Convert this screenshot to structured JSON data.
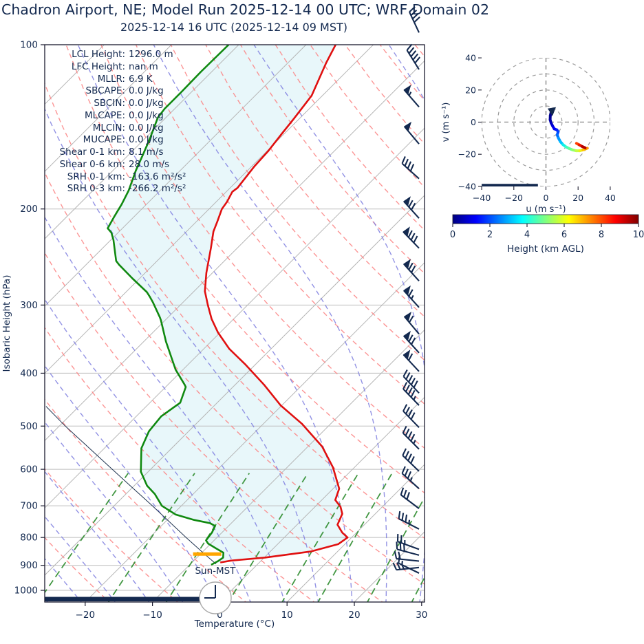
{
  "title": "Chadron Airport, NE; Model Run 2025-12-14 00 UTC; WRF Domain 02",
  "subtitle": "2025-12-14 16 UTC  (2025-12-14 09 MST)",
  "colors": {
    "navy": "#13294f",
    "temp": "#e01010",
    "dewpoint": "#108910",
    "shade": "#e0f4f8",
    "isotherm": "#b5b5b5",
    "isobar": "#bdbdbd",
    "dry_adiabat": "#fb8383",
    "moist_adiabat": "#7f7fdf",
    "mixing_ratio": "#2d8c2d",
    "lcl_marker": "#ffa500",
    "parcel": "#1f3350",
    "ring": "#9a9a9a",
    "clock_ring": "#a8a8a8"
  },
  "indices": [
    {
      "label": "LCL Height:",
      "value": "1296.0 m"
    },
    {
      "label": "LFC Height:",
      "value": "nan m"
    },
    {
      "label": "MLLR:",
      "value": "6.9 K"
    },
    {
      "label": "SBCAPE:",
      "value": "0.0 J/kg"
    },
    {
      "label": "SBCIN:",
      "value": "0.0 J/kg"
    },
    {
      "label": "MLCAPE:",
      "value": "0.0 J/kg"
    },
    {
      "label": "MLCIN:",
      "value": "0.0 J/kg"
    },
    {
      "label": "MUCAPE:",
      "value": "0.0 J/kg"
    },
    {
      "label": "Shear 0-1 km:",
      "value": "8.1 m/s"
    },
    {
      "label": "Shear 0-6 km:",
      "value": "28.0 m/s"
    },
    {
      "label": "SRH 0-1 km:",
      "value": "-163.6 m²/s²"
    },
    {
      "label": "SRH 0-3 km:",
      "value": "-266.2 m²/s²"
    }
  ],
  "chart_data": {
    "type": "skewt-logp-sounding",
    "station": "Chadron Airport, NE",
    "model_run": "2025-12-14 00 UTC",
    "valid_time": "2025-12-14 16 UTC (2025-12-14 09 MST)",
    "axes": {
      "xlabel": "Temperature (°C)",
      "ylabel": "Isobaric Height (hPa)",
      "x_ticks": [
        -20,
        -10,
        0,
        10,
        20,
        30
      ],
      "x_tick_labels": [
        "−20",
        "−10",
        "0",
        "10",
        "20",
        "30"
      ],
      "y_ticks": [
        100,
        200,
        300,
        400,
        500,
        600,
        700,
        800,
        900,
        1000
      ],
      "p_top": 100,
      "p_bottom": 1050,
      "t_at_x0": -26.0,
      "t_at_x1": 30.4
    },
    "background": {
      "isotherms": {
        "start": -120,
        "end": 40,
        "step": 10
      },
      "dry_adiabats": {
        "start": -30,
        "end": 230,
        "step": 10
      },
      "moist_adiabats": {
        "start": -40,
        "end": 45,
        "step": 5
      },
      "mixing_ratios": [
        0.0004,
        0.001,
        0.002,
        0.004,
        0.007,
        0.01,
        0.016,
        0.024,
        0.032
      ],
      "mixing_top_hpa": 600
    },
    "temperature_profile": [
      [
        100,
        -65.6
      ],
      [
        108,
        -64.3
      ],
      [
        124,
        -61.6
      ],
      [
        137,
        -60.8
      ],
      [
        145,
        -60.4
      ],
      [
        157,
        -59.8
      ],
      [
        167,
        -59.6
      ],
      [
        183,
        -58.9
      ],
      [
        186,
        -59.1
      ],
      [
        194,
        -58.4
      ],
      [
        200,
        -58.1
      ],
      [
        211,
        -56.9
      ],
      [
        220,
        -56.0
      ],
      [
        236,
        -53.9
      ],
      [
        262,
        -50.9
      ],
      [
        283,
        -48.4
      ],
      [
        300,
        -45.9
      ],
      [
        318,
        -43.3
      ],
      [
        337,
        -40.3
      ],
      [
        361,
        -36.2
      ],
      [
        386,
        -31.4
      ],
      [
        420,
        -25.7
      ],
      [
        458,
        -20.2
      ],
      [
        495,
        -14.3
      ],
      [
        545,
        -7.9
      ],
      [
        595,
        -3.2
      ],
      [
        651,
        0.9
      ],
      [
        683,
        2.0
      ],
      [
        703,
        3.8
      ],
      [
        724,
        5.1
      ],
      [
        758,
        6.0
      ],
      [
        784,
        7.9
      ],
      [
        800,
        9.4
      ],
      [
        823,
        9.0
      ],
      [
        849,
        6.0
      ],
      [
        871,
        0.1
      ],
      [
        882,
        -4.5
      ],
      [
        889,
        -5.8
      ]
    ],
    "dewpoint_profile": [
      [
        100,
        -81.5
      ],
      [
        112,
        -81.6
      ],
      [
        122,
        -81.5
      ],
      [
        131,
        -81.5
      ],
      [
        136,
        -81.2
      ],
      [
        149,
        -79.2
      ],
      [
        159,
        -77.9
      ],
      [
        170,
        -76.6
      ],
      [
        185,
        -74.7
      ],
      [
        196,
        -73.7
      ],
      [
        206,
        -73.0
      ],
      [
        217,
        -72.2
      ],
      [
        221,
        -71.0
      ],
      [
        228,
        -69.6
      ],
      [
        249,
        -66.1
      ],
      [
        253,
        -65.1
      ],
      [
        268,
        -61.1
      ],
      [
        284,
        -56.9
      ],
      [
        290,
        -55.7
      ],
      [
        297,
        -54.4
      ],
      [
        316,
        -51.2
      ],
      [
        320,
        -50.6
      ],
      [
        350,
        -46.7
      ],
      [
        394,
        -41.1
      ],
      [
        420,
        -37.5
      ],
      [
        424,
        -37.0
      ],
      [
        453,
        -35.5
      ],
      [
        480,
        -36.3
      ],
      [
        511,
        -35.9
      ],
      [
        549,
        -34.5
      ],
      [
        606,
        -31.1
      ],
      [
        643,
        -28.1
      ],
      [
        666,
        -25.7
      ],
      [
        700,
        -22.9
      ],
      [
        726,
        -19.6
      ],
      [
        743,
        -16.0
      ],
      [
        753,
        -13.2
      ],
      [
        762,
        -12.0
      ],
      [
        783,
        -11.5
      ],
      [
        810,
        -11.2
      ],
      [
        821,
        -10.4
      ],
      [
        838,
        -8.5
      ],
      [
        853,
        -6.8
      ],
      [
        871,
        -6.1
      ],
      [
        883,
        -6.3
      ],
      [
        898,
        -6.8
      ]
    ],
    "parcel_profile": [
      [
        895,
        -6.2
      ],
      [
        850,
        -10.1
      ],
      [
        800,
        -14.6
      ],
      [
        750,
        -19.3
      ],
      [
        700,
        -24.3
      ],
      [
        650,
        -29.8
      ],
      [
        600,
        -35.7
      ],
      [
        550,
        -42.1
      ],
      [
        500,
        -49.1
      ],
      [
        460,
        -54.9
      ]
    ],
    "lcl_marker": {
      "pressure": 858,
      "t_from": -11.1,
      "t_to": -6.9
    },
    "surface_bar": {
      "t_from": -26.0,
      "t_to": -3.0
    },
    "sun_label": "Sun-MST",
    "clock": {
      "hour_hand": "9",
      "minute_hand": "12"
    },
    "wind_barbs": [
      {
        "p": 95,
        "rot": 245,
        "flags": 0,
        "full": 4,
        "half": 0
      },
      {
        "p": 111,
        "rot": 238,
        "flags": 0,
        "full": 5,
        "half": 0
      },
      {
        "p": 130,
        "rot": 229,
        "flags": 1,
        "full": 0,
        "half": 1
      },
      {
        "p": 152,
        "rot": 230,
        "flags": 1,
        "full": 0,
        "half": 0
      },
      {
        "p": 176,
        "rot": 222,
        "flags": 0,
        "full": 4,
        "half": 0
      },
      {
        "p": 208,
        "rot": 228,
        "flags": 1,
        "full": 2,
        "half": 0
      },
      {
        "p": 236,
        "rot": 226,
        "flags": 1,
        "full": 3,
        "half": 0
      },
      {
        "p": 271,
        "rot": 228,
        "flags": 1,
        "full": 2,
        "half": 0
      },
      {
        "p": 303,
        "rot": 228,
        "flags": 1,
        "full": 1,
        "half": 1
      },
      {
        "p": 339,
        "rot": 230,
        "flags": 1,
        "full": 1,
        "half": 0
      },
      {
        "p": 367,
        "rot": 228,
        "flags": 1,
        "full": 2,
        "half": 0
      },
      {
        "p": 397,
        "rot": 227,
        "flags": 1,
        "full": 1,
        "half": 0
      },
      {
        "p": 435,
        "rot": 227,
        "flags": 0,
        "full": 5,
        "half": 0
      },
      {
        "p": 458,
        "rot": 226,
        "flags": 0,
        "full": 4,
        "half": 1
      },
      {
        "p": 503,
        "rot": 226,
        "flags": 0,
        "full": 4,
        "half": 0
      },
      {
        "p": 551,
        "rot": 225,
        "flags": 0,
        "full": 4,
        "half": 1
      },
      {
        "p": 605,
        "rot": 224,
        "flags": 0,
        "full": 4,
        "half": 0
      },
      {
        "p": 651,
        "rot": 222,
        "flags": 0,
        "full": 3,
        "half": 1
      },
      {
        "p": 708,
        "rot": 217,
        "flags": 0,
        "full": 3,
        "half": 0
      },
      {
        "p": 772,
        "rot": 207,
        "flags": 0,
        "full": 3,
        "half": 1
      },
      {
        "p": 841,
        "rot": 200,
        "flags": 0,
        "full": 2,
        "half": 1
      },
      {
        "p": 862,
        "rot": 195,
        "flags": 0,
        "full": 3,
        "half": 0
      },
      {
        "p": 884,
        "rot": 186,
        "flags": 0,
        "full": 2,
        "half": 0
      },
      {
        "p": 908,
        "rot": 174,
        "flags": 0,
        "full": 2,
        "half": 1
      },
      {
        "p": 930,
        "rot": 206,
        "flags": 0,
        "full": 1,
        "half": 1
      }
    ],
    "hodograph": {
      "xlabel": "u (m s⁻¹)",
      "ylabel": "v (m s⁻¹)",
      "ticks": [
        -40,
        -20,
        0,
        20,
        40
      ],
      "tick_labels": [
        "−40",
        "−20",
        "0",
        "20",
        "40"
      ],
      "rings": [
        10,
        20,
        30,
        40
      ],
      "trace_uv": [
        [
          3.2,
          6.3
        ],
        [
          2.7,
          4.0
        ],
        [
          2.6,
          1.5
        ],
        [
          3.2,
          -0.5
        ],
        [
          4.2,
          -2.5
        ],
        [
          5.2,
          -4.2
        ],
        [
          6.8,
          -4.8
        ],
        [
          7.6,
          -6.0
        ],
        [
          7.0,
          -8.0
        ],
        [
          7.8,
          -10.0
        ],
        [
          9.0,
          -12.2
        ],
        [
          10.6,
          -14.0
        ],
        [
          12.4,
          -15.4
        ],
        [
          14.4,
          -16.4
        ],
        [
          16.6,
          -17.3
        ],
        [
          18.8,
          -17.8
        ],
        [
          21.0,
          -17.8
        ],
        [
          23.0,
          -17.3
        ],
        [
          24.8,
          -16.6
        ],
        [
          25.8,
          -16.2
        ]
      ],
      "trace_colors": [
        "#000080",
        "#00008f",
        "#0000a8",
        "#0000c4",
        "#0000e0",
        "#0000fa",
        "#0020ff",
        "#0048ff",
        "#0070ff",
        "#0098ff",
        "#00c4ff",
        "#0ff0e8",
        "#3cffc0",
        "#68ff96",
        "#94ff6c",
        "#c4ff44",
        "#eef01a",
        "#ffc400",
        "#ff9800"
      ],
      "upper_trace_uv": [
        [
          19.0,
          -13.2
        ],
        [
          20.8,
          -14.2
        ],
        [
          22.6,
          -15.2
        ],
        [
          24.4,
          -16.0
        ]
      ],
      "upper_trace_colors": [
        "#ff4000",
        "#e81500",
        "#b40000"
      ],
      "baseline_bar": {
        "u_from": -40,
        "u_to": -5,
        "v": -39.5
      }
    },
    "colorbar": {
      "label": "Height (km AGL)",
      "ticks": [
        0,
        2,
        4,
        6,
        8,
        10
      ],
      "cmap": "jet",
      "stops": [
        "#000080",
        "#0000ff",
        "#00ffff",
        "#ffff00",
        "#ff0000",
        "#800000"
      ],
      "stop_pos": [
        0,
        12.5,
        37.5,
        62.5,
        87.5,
        100
      ]
    }
  }
}
